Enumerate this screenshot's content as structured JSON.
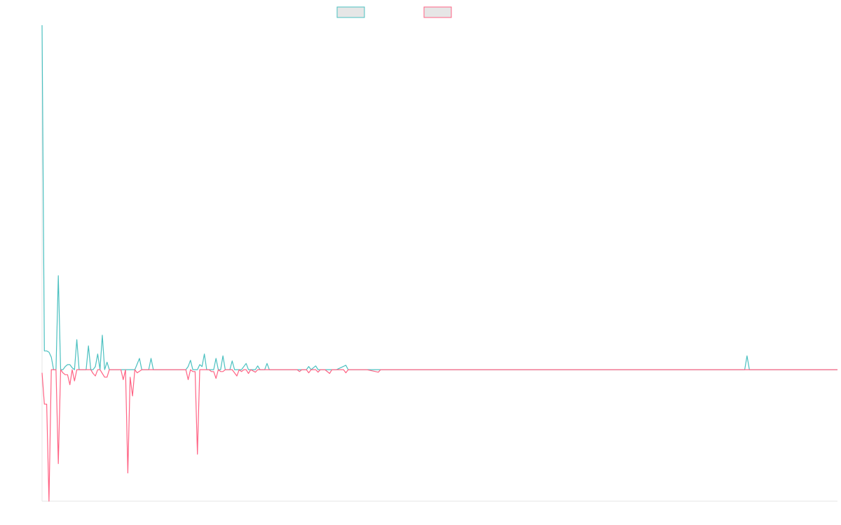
{
  "colors": {
    "series_a": "#4bc0c0",
    "series_b": "#ff6384",
    "legend_fill": "#e6e6e6",
    "axis": "#e5e5e5"
  },
  "chart_data": {
    "type": "line",
    "title": "",
    "xlabel": "",
    "ylabel": "",
    "grid": false,
    "legend_position": "top",
    "ylim": [
      -21,
      55
    ],
    "x_count": 344,
    "series": [
      {
        "color": "#4bc0c0",
        "points": [
          [
            0,
            55
          ],
          [
            1,
            3
          ],
          [
            2,
            3
          ],
          [
            3,
            2.8
          ],
          [
            4,
            2
          ],
          [
            5,
            0
          ],
          [
            6,
            0
          ],
          [
            7,
            15
          ],
          [
            8,
            0
          ],
          [
            9,
            0
          ],
          [
            10,
            0.5
          ],
          [
            11,
            0.8
          ],
          [
            12,
            0.8
          ],
          [
            13,
            0.3
          ],
          [
            14,
            0
          ],
          [
            15,
            4.8
          ],
          [
            16,
            0
          ],
          [
            17,
            0
          ],
          [
            18,
            0
          ],
          [
            19,
            0
          ],
          [
            20,
            3.8
          ],
          [
            21,
            0
          ],
          [
            22,
            0
          ],
          [
            23,
            0.5
          ],
          [
            24,
            2.5
          ],
          [
            25,
            0
          ],
          [
            26,
            5.5
          ],
          [
            27,
            0
          ],
          [
            28,
            1.2
          ],
          [
            29,
            0
          ],
          [
            30,
            0
          ],
          [
            32,
            0
          ],
          [
            34,
            0
          ],
          [
            36,
            0
          ],
          [
            38,
            0
          ],
          [
            40,
            0
          ],
          [
            42,
            1.8
          ],
          [
            43,
            0
          ],
          [
            44,
            0
          ],
          [
            45,
            0
          ],
          [
            46,
            0
          ],
          [
            47,
            1.8
          ],
          [
            48,
            0
          ],
          [
            50,
            0
          ],
          [
            52,
            0
          ],
          [
            54,
            0
          ],
          [
            56,
            0
          ],
          [
            58,
            0
          ],
          [
            60,
            0
          ],
          [
            62,
            0
          ],
          [
            63,
            0.5
          ],
          [
            64,
            1.5
          ],
          [
            65,
            0
          ],
          [
            67,
            0
          ],
          [
            68,
            0.8
          ],
          [
            69,
            0.5
          ],
          [
            70,
            2.5
          ],
          [
            71,
            0
          ],
          [
            72,
            0
          ],
          [
            73,
            0
          ],
          [
            74,
            0
          ],
          [
            75,
            1.8
          ],
          [
            76,
            0
          ],
          [
            77,
            0
          ],
          [
            78,
            2.2
          ],
          [
            79,
            0
          ],
          [
            80,
            0
          ],
          [
            81,
            0
          ],
          [
            82,
            1.4
          ],
          [
            83,
            0
          ],
          [
            84,
            0
          ],
          [
            86,
            0
          ],
          [
            88,
            1
          ],
          [
            89,
            0
          ],
          [
            91,
            0
          ],
          [
            92,
            0
          ],
          [
            93,
            0.6
          ],
          [
            94,
            0
          ],
          [
            96,
            0
          ],
          [
            97,
            1
          ],
          [
            98,
            0
          ],
          [
            100,
            0
          ],
          [
            104,
            0
          ],
          [
            108,
            0
          ],
          [
            110,
            0
          ],
          [
            112,
            0
          ],
          [
            114,
            0
          ],
          [
            115,
            0.5
          ],
          [
            116,
            0
          ],
          [
            118,
            0.6
          ],
          [
            119,
            0
          ],
          [
            121,
            0
          ],
          [
            125,
            0
          ],
          [
            127,
            0
          ],
          [
            131,
            0.7
          ],
          [
            132,
            0
          ],
          [
            137,
            0
          ],
          [
            140,
            0
          ],
          [
            145,
            0
          ],
          [
            150,
            0
          ],
          [
            155,
            0
          ],
          [
            160,
            0
          ],
          [
            170,
            0
          ],
          [
            180,
            0
          ],
          [
            190,
            0
          ],
          [
            200,
            0
          ],
          [
            210,
            0
          ],
          [
            220,
            0
          ],
          [
            230,
            0
          ],
          [
            240,
            0
          ],
          [
            250,
            0
          ],
          [
            260,
            0
          ],
          [
            270,
            0
          ],
          [
            280,
            0
          ],
          [
            290,
            0
          ],
          [
            300,
            0
          ],
          [
            303,
            0
          ],
          [
            304,
            2.2
          ],
          [
            305,
            0
          ],
          [
            310,
            0
          ],
          [
            320,
            0
          ],
          [
            330,
            0
          ],
          [
            331,
            0
          ],
          [
            332,
            0
          ],
          [
            333,
            0
          ],
          [
            334,
            0
          ],
          [
            335,
            0
          ],
          [
            340,
            0
          ],
          [
            343,
            0
          ]
        ]
      },
      {
        "color": "#ff6384",
        "points": [
          [
            0,
            -0.5
          ],
          [
            1,
            -5.5
          ],
          [
            2,
            -5.5
          ],
          [
            3,
            -21
          ],
          [
            4,
            0
          ],
          [
            5,
            0
          ],
          [
            6,
            0
          ],
          [
            7,
            -15
          ],
          [
            8,
            0
          ],
          [
            9,
            -0.5
          ],
          [
            10,
            -0.8
          ],
          [
            11,
            -0.8
          ],
          [
            12,
            -2.4
          ],
          [
            13,
            0
          ],
          [
            14,
            -1.8
          ],
          [
            15,
            0
          ],
          [
            16,
            0
          ],
          [
            17,
            0
          ],
          [
            18,
            0
          ],
          [
            19,
            0
          ],
          [
            20,
            0
          ],
          [
            21,
            0
          ],
          [
            22,
            -0.6
          ],
          [
            23,
            -1
          ],
          [
            24,
            0
          ],
          [
            25,
            0
          ],
          [
            26,
            -0.6
          ],
          [
            27,
            -1.2
          ],
          [
            28,
            -1.2
          ],
          [
            29,
            0
          ],
          [
            30,
            0
          ],
          [
            32,
            0
          ],
          [
            34,
            0
          ],
          [
            35,
            -1.6
          ],
          [
            36,
            0
          ],
          [
            37,
            -16.5
          ],
          [
            38,
            -1.2
          ],
          [
            39,
            -4.2
          ],
          [
            40,
            0
          ],
          [
            41,
            -0.5
          ],
          [
            43,
            0
          ],
          [
            44,
            0
          ],
          [
            45,
            0
          ],
          [
            46,
            0
          ],
          [
            50,
            0
          ],
          [
            52,
            0
          ],
          [
            54,
            0
          ],
          [
            56,
            0
          ],
          [
            58,
            0
          ],
          [
            60,
            0
          ],
          [
            62,
            0
          ],
          [
            63,
            -1.6
          ],
          [
            64,
            0
          ],
          [
            65,
            -0.3
          ],
          [
            66,
            -0.3
          ],
          [
            67,
            -13.5
          ],
          [
            68,
            0
          ],
          [
            70,
            0
          ],
          [
            72,
            0
          ],
          [
            73,
            -0.3
          ],
          [
            74,
            -0.3
          ],
          [
            75,
            -1.4
          ],
          [
            76,
            0
          ],
          [
            77,
            -0.3
          ],
          [
            78,
            -0.3
          ],
          [
            79,
            0
          ],
          [
            80,
            0
          ],
          [
            82,
            0
          ],
          [
            84,
            -1
          ],
          [
            85,
            0
          ],
          [
            86,
            -0.3
          ],
          [
            87,
            0
          ],
          [
            88,
            0
          ],
          [
            89,
            -0.6
          ],
          [
            90,
            0
          ],
          [
            92,
            -0.4
          ],
          [
            93,
            0
          ],
          [
            95,
            0
          ],
          [
            96,
            0
          ],
          [
            97,
            0
          ],
          [
            100,
            0
          ],
          [
            104,
            0
          ],
          [
            108,
            0
          ],
          [
            110,
            0
          ],
          [
            111,
            -0.3
          ],
          [
            112,
            0
          ],
          [
            114,
            0
          ],
          [
            115,
            -0.5
          ],
          [
            116,
            0
          ],
          [
            118,
            0
          ],
          [
            119,
            -0.4
          ],
          [
            120,
            0
          ],
          [
            122,
            0
          ],
          [
            124,
            -0.6
          ],
          [
            125,
            0
          ],
          [
            128,
            0
          ],
          [
            130,
            0
          ],
          [
            131,
            -0.5
          ],
          [
            132,
            0
          ],
          [
            137,
            0
          ],
          [
            140,
            0
          ],
          [
            145,
            -0.4
          ],
          [
            146,
            0
          ],
          [
            150,
            0
          ],
          [
            160,
            0
          ],
          [
            170,
            0
          ],
          [
            180,
            0
          ],
          [
            190,
            0
          ],
          [
            200,
            0
          ],
          [
            210,
            0
          ],
          [
            220,
            0
          ],
          [
            230,
            0
          ],
          [
            240,
            0
          ],
          [
            250,
            0
          ],
          [
            260,
            0
          ],
          [
            270,
            0
          ],
          [
            280,
            0
          ],
          [
            290,
            0
          ],
          [
            300,
            0
          ],
          [
            303,
            0
          ],
          [
            304,
            0
          ],
          [
            305,
            0
          ],
          [
            310,
            0
          ],
          [
            320,
            0
          ],
          [
            330,
            0
          ],
          [
            340,
            0
          ],
          [
            343,
            0
          ]
        ]
      }
    ]
  }
}
